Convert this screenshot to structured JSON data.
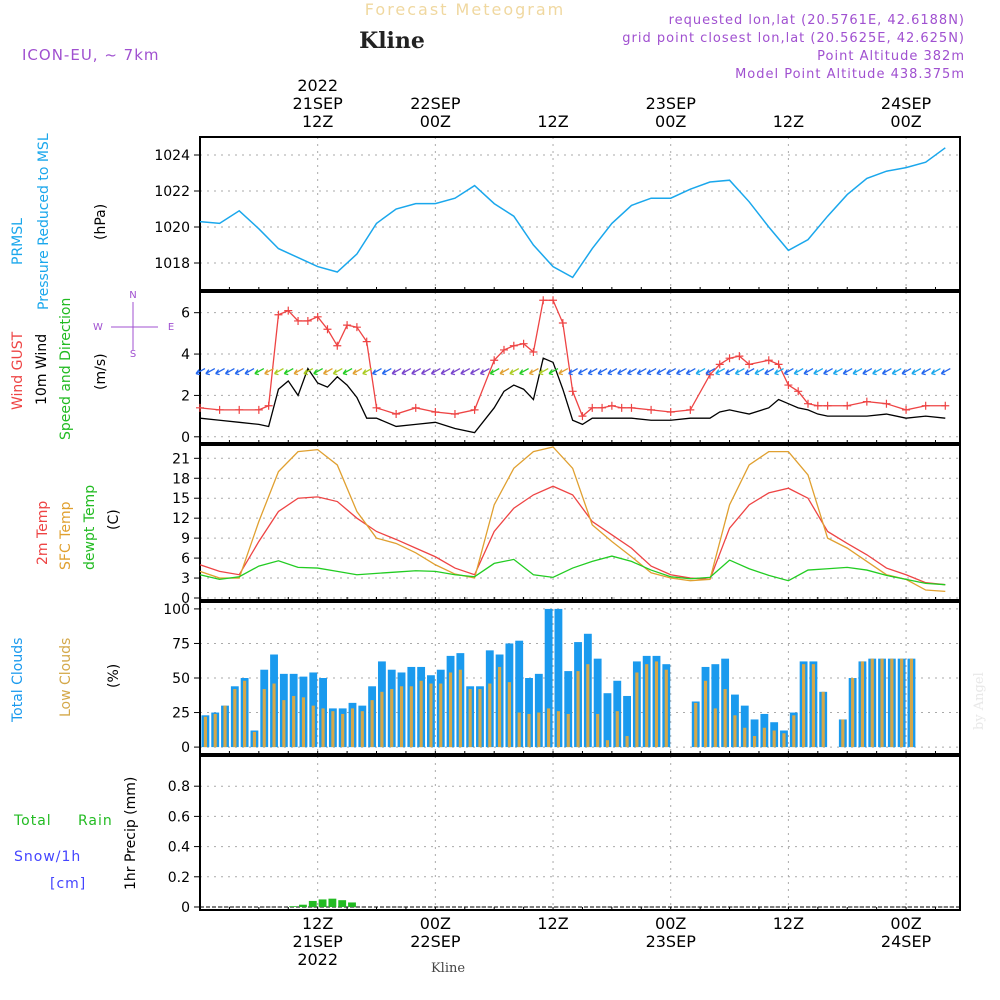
{
  "header": {
    "product": "Forecast Meteogram",
    "station": "Kline",
    "model": "ICON-EU, ~ 7km",
    "requested": "requested lon,lat (20.5761E, 42.6188N)",
    "gridpoint": "grid point closest lon,lat (20.5625E, 42.625N)",
    "point_alt": "Point Altitude 382m",
    "model_alt": "Model Point Altitude 438.375m",
    "watermark": "by Angel",
    "footer": "Kline"
  },
  "colors": {
    "pressure": "#1aa7ec",
    "gust": "#ee4444",
    "wind": "#000000",
    "temp2m": "#ee4444",
    "sfc": "#e0a030",
    "dewpt": "#22cc22",
    "total_clouds": "#1a9aee",
    "low_clouds": "#d4a84a",
    "rain": "#22bb22",
    "snow": "#4444ff",
    "header_purple": "#a050d0"
  },
  "time_axis": {
    "top_ticks": [
      {
        "h": 12,
        "lines": [
          "2022",
          "21SEP",
          "12Z"
        ]
      },
      {
        "h": 24,
        "lines": [
          "22SEP",
          "00Z"
        ]
      },
      {
        "h": 36,
        "lines": [
          "12Z"
        ]
      },
      {
        "h": 48,
        "lines": [
          "23SEP",
          "00Z"
        ]
      },
      {
        "h": 60,
        "lines": [
          "12Z"
        ]
      },
      {
        "h": 72,
        "lines": [
          "24SEP",
          "00Z"
        ]
      }
    ],
    "bottom_ticks": [
      {
        "h": 12,
        "lines": [
          "12Z",
          "21SEP",
          "2022"
        ]
      },
      {
        "h": 24,
        "lines": [
          "00Z",
          "22SEP"
        ]
      },
      {
        "h": 36,
        "lines": [
          "12Z"
        ]
      },
      {
        "h": 48,
        "lines": [
          "00Z",
          "23SEP"
        ]
      },
      {
        "h": 60,
        "lines": [
          "12Z"
        ]
      },
      {
        "h": 72,
        "lines": [
          "00Z",
          "24SEP"
        ]
      }
    ]
  },
  "panels": {
    "pressure": {
      "label1": "PRMSL",
      "label2": "Pressure Reduced to MSL",
      "unit": "(hPa)"
    },
    "wind": {
      "label_gust": "Wind GUST",
      "label_wind": "10m Wind",
      "label_dir": "Speed and Direction",
      "unit": "(m/s)",
      "compass_n": "N",
      "compass_s": "S",
      "compass_w": "W",
      "compass_e": "E"
    },
    "temp": {
      "label_2m": "2m Temp",
      "label_sfc": "SFC Temp",
      "label_dew": "dewpt Temp",
      "unit": "(C)"
    },
    "clouds": {
      "label_total": "Total Clouds",
      "label_low": "Low Clouds",
      "unit": "(%)"
    },
    "precip": {
      "label_rain_a": "Total",
      "label_rain_b": "Rain",
      "label_snow": "Snow/1h",
      "label_cm": "[cm]",
      "unit": "1hr Precip (mm)"
    }
  },
  "chart_data": [
    {
      "type": "line",
      "id": "pressure",
      "title": "PRMSL Pressure Reduced to MSL",
      "ylabel": "(hPa)",
      "x_hours": [
        0,
        2,
        4,
        6,
        8,
        10,
        12,
        14,
        16,
        18,
        20,
        22,
        24,
        26,
        28,
        30,
        32,
        34,
        36,
        38,
        40,
        42,
        44,
        46,
        48,
        50,
        52,
        54,
        56,
        58,
        60,
        62,
        64,
        66,
        68,
        70,
        72,
        74,
        76
      ],
      "y": [
        1020.3,
        1020.2,
        1020.9,
        1019.9,
        1018.8,
        1018.3,
        1017.8,
        1017.5,
        1018.5,
        1020.2,
        1021.0,
        1021.3,
        1021.3,
        1021.6,
        1022.3,
        1021.3,
        1020.6,
        1019.0,
        1017.8,
        1017.2,
        1018.8,
        1020.2,
        1021.2,
        1021.6,
        1021.6,
        1022.1,
        1022.5,
        1022.6,
        1021.4,
        1020.0,
        1018.7,
        1019.3,
        1020.6,
        1021.8,
        1022.7,
        1023.1,
        1023.3,
        1023.6,
        1024.4
      ],
      "ylim": [
        1016.5,
        1025
      ],
      "yticks": [
        1018,
        1020,
        1022,
        1024
      ],
      "grid": true
    },
    {
      "type": "line",
      "id": "wind",
      "title": "Wind GUST / 10m Wind Speed and Direction",
      "ylabel": "(m/s)",
      "series": [
        {
          "name": "Wind GUST",
          "x": [
            0,
            2,
            4,
            6,
            7,
            8,
            9,
            10,
            11,
            12,
            13,
            14,
            15,
            16,
            17,
            18,
            20,
            22,
            24,
            26,
            28,
            30,
            31,
            32,
            33,
            34,
            35,
            36,
            37,
            38,
            39,
            40,
            41,
            42,
            43,
            44,
            46,
            48,
            50,
            52,
            53,
            54,
            55,
            56,
            58,
            59,
            60,
            61,
            62,
            63,
            64,
            66,
            68,
            70,
            72,
            74,
            76
          ],
          "y": [
            1.4,
            1.3,
            1.3,
            1.3,
            1.5,
            5.9,
            6.1,
            5.6,
            5.6,
            5.8,
            5.2,
            4.4,
            5.4,
            5.3,
            4.6,
            1.4,
            1.1,
            1.4,
            1.2,
            1.1,
            1.3,
            3.7,
            4.2,
            4.4,
            4.5,
            4.1,
            6.6,
            6.6,
            5.5,
            2.2,
            1.0,
            1.4,
            1.4,
            1.5,
            1.4,
            1.4,
            1.3,
            1.2,
            1.3,
            3.0,
            3.5,
            3.8,
            3.9,
            3.5,
            3.7,
            3.5,
            2.5,
            2.2,
            1.6,
            1.5,
            1.5,
            1.5,
            1.7,
            1.6,
            1.3,
            1.5,
            1.5
          ]
        },
        {
          "name": "10m Wind",
          "x": [
            0,
            2,
            4,
            6,
            7,
            8,
            9,
            10,
            11,
            12,
            13,
            14,
            15,
            16,
            17,
            18,
            20,
            22,
            24,
            26,
            28,
            30,
            31,
            32,
            33,
            34,
            35,
            36,
            37,
            38,
            39,
            40,
            41,
            42,
            44,
            46,
            48,
            50,
            52,
            53,
            54,
            55,
            56,
            58,
            59,
            60,
            61,
            62,
            63,
            64,
            66,
            68,
            70,
            72,
            74,
            76
          ],
          "y": [
            0.9,
            0.8,
            0.7,
            0.6,
            0.5,
            2.3,
            2.7,
            2.0,
            3.3,
            2.6,
            2.4,
            2.9,
            2.5,
            1.9,
            0.9,
            0.9,
            0.5,
            0.6,
            0.7,
            0.4,
            0.2,
            1.4,
            2.2,
            2.5,
            2.3,
            1.8,
            3.8,
            3.6,
            2.3,
            0.8,
            0.6,
            0.9,
            0.9,
            0.9,
            0.9,
            0.8,
            0.8,
            0.9,
            0.9,
            1.2,
            1.3,
            1.2,
            1.1,
            1.4,
            1.8,
            1.6,
            1.4,
            1.3,
            1.1,
            1.0,
            1.0,
            1.0,
            1.1,
            0.9,
            1.0,
            0.9
          ]
        }
      ],
      "ylim": [
        -0.3,
        7
      ],
      "yticks": [
        0,
        2,
        4,
        6
      ],
      "grid": true
    },
    {
      "type": "line",
      "id": "temperature",
      "title": "2m Temp / SFC Temp / dewpt Temp",
      "ylabel": "(C)",
      "series": [
        {
          "name": "2m Temp",
          "x": [
            0,
            2,
            4,
            6,
            8,
            10,
            12,
            14,
            16,
            18,
            20,
            22,
            24,
            26,
            28,
            30,
            32,
            34,
            36,
            38,
            40,
            42,
            44,
            46,
            48,
            50,
            52,
            54,
            56,
            58,
            60,
            62,
            64,
            66,
            68,
            70,
            72,
            74,
            76
          ],
          "y": [
            5.0,
            4.0,
            3.5,
            8.5,
            13.0,
            15.0,
            15.2,
            14.5,
            12.0,
            10.0,
            8.8,
            7.5,
            6.2,
            4.5,
            3.5,
            10.0,
            13.5,
            15.5,
            16.8,
            15.5,
            11.5,
            9.5,
            7.5,
            4.8,
            3.5,
            3.0,
            2.8,
            10.5,
            14.0,
            15.8,
            16.5,
            15.0,
            10.0,
            8.2,
            6.5,
            4.5,
            3.5,
            2.3,
            2.0
          ]
        },
        {
          "name": "SFC Temp",
          "x": [
            0,
            2,
            4,
            6,
            8,
            10,
            12,
            14,
            16,
            18,
            20,
            22,
            24,
            26,
            28,
            30,
            32,
            34,
            36,
            38,
            40,
            42,
            44,
            46,
            48,
            50,
            52,
            54,
            56,
            58,
            60,
            62,
            64,
            66,
            68,
            70,
            72,
            74,
            76
          ],
          "y": [
            4.0,
            3.0,
            3.0,
            11.5,
            19.0,
            22.0,
            22.3,
            20.0,
            13.0,
            9.0,
            8.2,
            6.8,
            5.0,
            3.6,
            3.0,
            14.0,
            19.5,
            22.0,
            22.7,
            19.5,
            11.0,
            8.5,
            6.2,
            3.8,
            3.0,
            2.6,
            2.8,
            14.0,
            20.0,
            22.0,
            22.0,
            18.5,
            9.0,
            7.5,
            5.5,
            3.5,
            2.8,
            1.2,
            1.0
          ]
        },
        {
          "name": "dewpt Temp",
          "x": [
            0,
            2,
            4,
            6,
            8,
            10,
            12,
            14,
            16,
            18,
            20,
            22,
            24,
            26,
            28,
            30,
            32,
            34,
            36,
            38,
            40,
            42,
            44,
            46,
            48,
            50,
            52,
            54,
            56,
            58,
            60,
            62,
            64,
            66,
            68,
            70,
            72,
            74,
            76
          ],
          "y": [
            3.5,
            2.8,
            3.2,
            4.8,
            5.6,
            4.6,
            4.5,
            4.0,
            3.5,
            3.7,
            3.9,
            4.1,
            4.0,
            3.5,
            3.2,
            5.2,
            5.8,
            3.5,
            3.1,
            4.5,
            5.5,
            6.3,
            5.5,
            4.2,
            3.2,
            2.9,
            3.1,
            5.7,
            4.4,
            3.4,
            2.6,
            4.2,
            4.4,
            4.6,
            4.2,
            3.4,
            2.8,
            2.2,
            2.0
          ]
        }
      ],
      "ylim": [
        -0.3,
        23
      ],
      "yticks": [
        0,
        3,
        6,
        9,
        12,
        15,
        18,
        21
      ],
      "grid": true
    },
    {
      "type": "bar",
      "id": "clouds",
      "title": "Total Clouds / Low Clouds",
      "ylabel": "(%)",
      "x_hours": [
        0,
        1,
        2,
        3,
        4,
        5,
        6,
        7,
        8,
        9,
        10,
        11,
        12,
        13,
        14,
        15,
        16,
        17,
        18,
        19,
        20,
        21,
        22,
        23,
        24,
        25,
        26,
        27,
        28,
        29,
        30,
        31,
        32,
        33,
        34,
        35,
        36,
        37,
        38,
        39,
        40,
        41,
        42,
        43,
        44,
        45,
        46,
        47,
        48,
        49,
        50,
        51,
        52,
        53,
        54,
        55,
        56,
        57,
        58,
        59,
        60,
        61,
        62,
        63,
        64,
        65,
        66,
        67,
        68,
        69,
        70,
        71,
        72,
        73,
        74,
        75,
        76
      ],
      "series": [
        {
          "name": "Total Clouds",
          "values": [
            23,
            25,
            30,
            44,
            50,
            12,
            56,
            67,
            53,
            53,
            51,
            54,
            50,
            28,
            28,
            32,
            30,
            44,
            62,
            56,
            54,
            58,
            58,
            52,
            56,
            66,
            68,
            44,
            44,
            70,
            67,
            75,
            77,
            50,
            53,
            100,
            100,
            55,
            76,
            82,
            64,
            39,
            48,
            37,
            62,
            66,
            66,
            60,
            0,
            0,
            33,
            58,
            60,
            64,
            38,
            30,
            20,
            24,
            18,
            12,
            25,
            62,
            62,
            40,
            0,
            20,
            50,
            62,
            64,
            64,
            64,
            64,
            64,
            0,
            0,
            0,
            0
          ]
        },
        {
          "name": "Low Clouds",
          "values": [
            22,
            24,
            30,
            42,
            48,
            11,
            42,
            46,
            34,
            37,
            36,
            30,
            28,
            26,
            24,
            28,
            26,
            34,
            40,
            42,
            44,
            44,
            48,
            46,
            46,
            54,
            56,
            42,
            42,
            46,
            58,
            47,
            25,
            24,
            25,
            28,
            26,
            24,
            55,
            60,
            24,
            5,
            26,
            8,
            54,
            60,
            62,
            56,
            0,
            0,
            32,
            48,
            28,
            42,
            23,
            14,
            8,
            14,
            12,
            10,
            23,
            60,
            60,
            40,
            0,
            20,
            50,
            62,
            64,
            64,
            64,
            64,
            64,
            0,
            0,
            0,
            0
          ]
        }
      ],
      "ylim": [
        -5,
        105
      ],
      "yticks": [
        0,
        25,
        50,
        75,
        100
      ],
      "grid": true
    },
    {
      "type": "bar",
      "id": "precip",
      "title": "1hr Precip (mm)",
      "ylabel": "1hr Precip (mm)",
      "x_hours": [
        9,
        10,
        11,
        12,
        13,
        14,
        15
      ],
      "series": [
        {
          "name": "Total Rain",
          "values": [
            0.005,
            0.015,
            0.04,
            0.05,
            0.055,
            0.045,
            0.03
          ]
        }
      ],
      "ylim": [
        -0.02,
        1.0
      ],
      "yticks": [
        0,
        0.2,
        0.4,
        0.6,
        0.8
      ],
      "grid": true
    }
  ]
}
